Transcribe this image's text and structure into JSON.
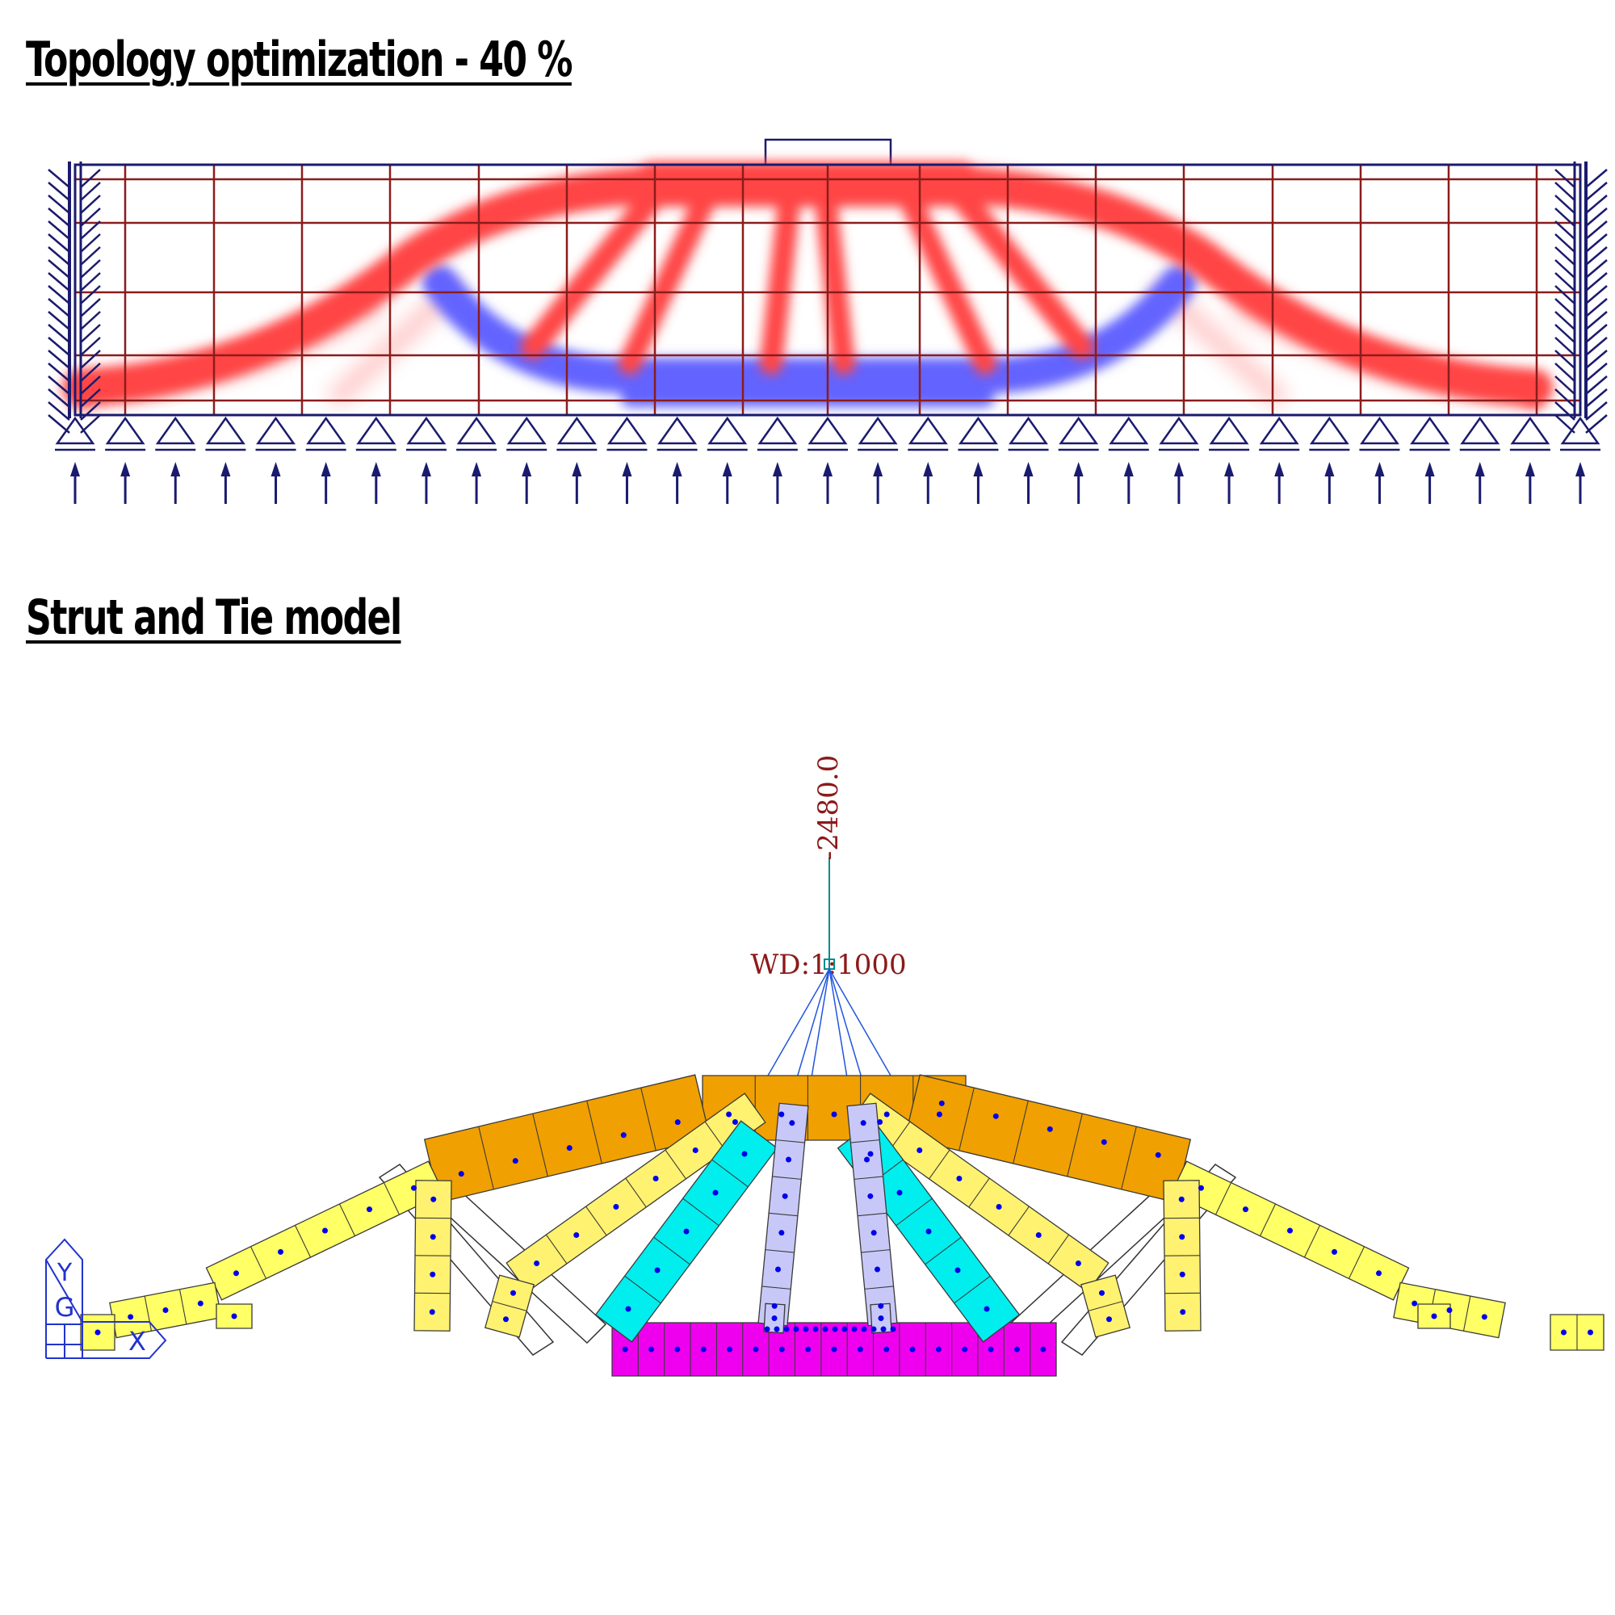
{
  "headings": {
    "topology": "Topology optimization - 40 %",
    "strut_tie": "Strut and Tie model"
  },
  "strut_tie": {
    "load_value": "-2480.0",
    "wd_label": "WD:1:1000",
    "axis": {
      "y": "Y",
      "g": "G",
      "x": "X"
    }
  },
  "colors": {
    "tension_red": "#ff4545",
    "compression_blue": "#6464ff",
    "grid": "#8b1c1c",
    "support_navy": "#1a1a6e",
    "orange_strut": "#f0a000",
    "yellow_strut": "#ffff66",
    "pale_yellow_strut": "#fff270",
    "cyan_strut": "#00eeee",
    "lavender_strut": "#c8c8f8",
    "magenta_tie": "#ee00ee",
    "node_blue": "#0000ee"
  }
}
